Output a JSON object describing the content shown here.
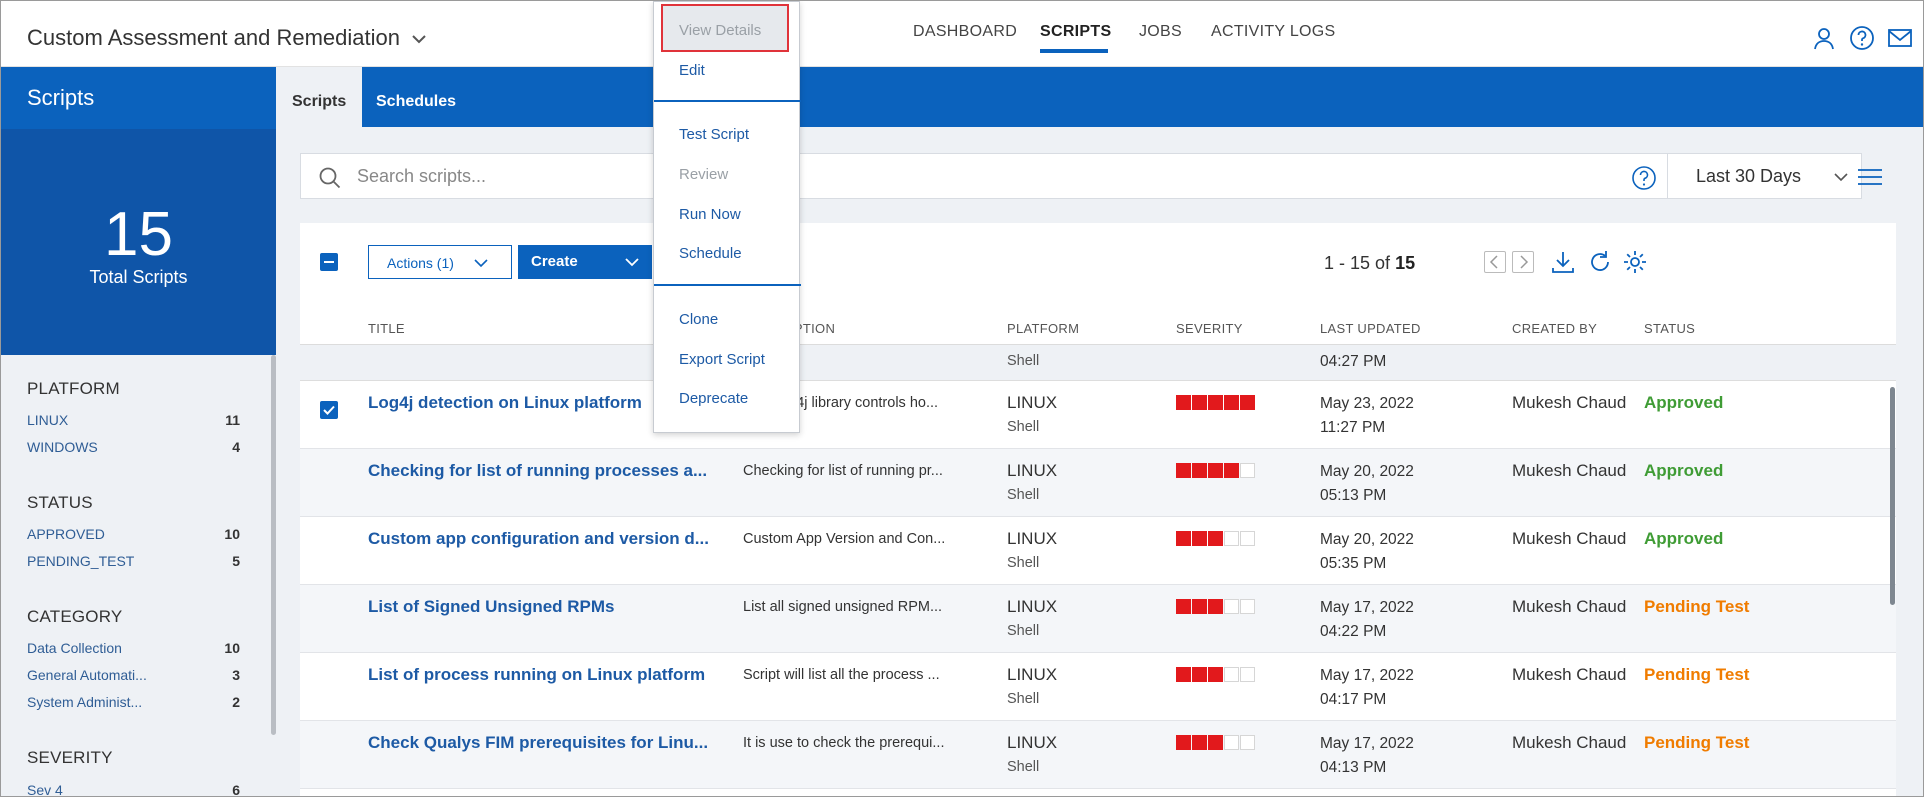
{
  "app": {
    "title": "Custom Assessment and Remediation"
  },
  "nav": [
    "DASHBOARD",
    "SCRIPTS",
    "JOBS",
    "ACTIVITY LOGS"
  ],
  "nav_active": "SCRIPTS",
  "header_icons": [
    "user-icon",
    "help-icon",
    "mail-icon"
  ],
  "left": {
    "title": "Scripts",
    "total_count": "15",
    "total_label": "Total Scripts",
    "filters": [
      {
        "heading": "PLATFORM",
        "items": [
          {
            "label": "LINUX",
            "count": "11"
          },
          {
            "label": "WINDOWS",
            "count": "4"
          }
        ]
      },
      {
        "heading": "STATUS",
        "items": [
          {
            "label": "APPROVED",
            "count": "10"
          },
          {
            "label": "PENDING_TEST",
            "count": "5"
          }
        ]
      },
      {
        "heading": "CATEGORY",
        "items": [
          {
            "label": "Data Collection",
            "count": "10"
          },
          {
            "label": "General Automati...",
            "count": "3"
          },
          {
            "label": "System Administ...",
            "count": "2"
          }
        ]
      },
      {
        "heading": "SEVERITY",
        "items": [
          {
            "label": "Sev 4",
            "count": "6"
          }
        ]
      }
    ]
  },
  "tabs": [
    {
      "label": "Scripts",
      "active": true
    },
    {
      "label": "Schedules",
      "active": false
    }
  ],
  "search": {
    "placeholder": "Search scripts...",
    "date_range": "Last 30 Days"
  },
  "toolbar": {
    "actions_label": "Actions (1)",
    "create_label": "Create",
    "pagination_range": "1 - 15 of",
    "pagination_total": "15"
  },
  "columns": [
    "TITLE",
    "DESCRIPTION",
    "PLATFORM",
    "SEVERITY",
    "LAST UPDATED",
    "CREATED BY",
    "STATUS"
  ],
  "partial_row": {
    "sub": "Shell",
    "time": "04:27 PM"
  },
  "rows": [
    {
      "checked": true,
      "title": "Log4j detection on Linux platform",
      "description": "The Log4j library controls ho...",
      "platform": "LINUX",
      "type": "Shell",
      "severity": 5,
      "date": "May 23, 2022",
      "time": "11:27 PM",
      "created_by": "Mukesh Chaud",
      "status": "Approved"
    },
    {
      "checked": false,
      "title": "Checking for list of running processes a...",
      "description": "Checking for list of running pr...",
      "platform": "LINUX",
      "type": "Shell",
      "severity": 4,
      "date": "May 20, 2022",
      "time": "05:13 PM",
      "created_by": "Mukesh Chaud",
      "status": "Approved"
    },
    {
      "checked": false,
      "title": "Custom app configuration and version d...",
      "description": "Custom App Version and Con...",
      "platform": "LINUX",
      "type": "Shell",
      "severity": 3,
      "date": "May 20, 2022",
      "time": "05:35 PM",
      "created_by": "Mukesh Chaud",
      "status": "Approved"
    },
    {
      "checked": false,
      "title": "List of Signed Unsigned RPMs",
      "description": "List all signed unsigned RPM...",
      "platform": "LINUX",
      "type": "Shell",
      "severity": 3,
      "date": "May 17, 2022",
      "time": "04:22 PM",
      "created_by": "Mukesh Chaud",
      "status": "Pending Test"
    },
    {
      "checked": false,
      "title": "List of process running on Linux platform",
      "description": "Script will list all the process ...",
      "platform": "LINUX",
      "type": "Shell",
      "severity": 3,
      "date": "May 17, 2022",
      "time": "04:17 PM",
      "created_by": "Mukesh Chaud",
      "status": "Pending Test"
    },
    {
      "checked": false,
      "title": "Check Qualys FIM prerequisites for Linu...",
      "description": "It is use to check the prerequi...",
      "platform": "LINUX",
      "type": "Shell",
      "severity": 3,
      "date": "May 17, 2022",
      "time": "04:13 PM",
      "created_by": "Mukesh Chaud",
      "status": "Pending Test"
    }
  ],
  "status_colors": {
    "Approved": "#3f9c35",
    "Pending Test": "#f07c00"
  },
  "context_menu": {
    "highlighted": "View Details",
    "groups": [
      [
        {
          "label": "View Details",
          "disabled": true
        },
        {
          "label": "Edit",
          "disabled": false
        }
      ],
      [
        {
          "label": "Test Script",
          "disabled": false
        },
        {
          "label": "Review",
          "disabled": true
        },
        {
          "label": "Run Now",
          "disabled": false
        },
        {
          "label": "Schedule",
          "disabled": false
        }
      ],
      [
        {
          "label": "Clone",
          "disabled": false
        },
        {
          "label": "Export Script",
          "disabled": false
        },
        {
          "label": "Deprecate",
          "disabled": false
        }
      ]
    ]
  },
  "colors": {
    "primary": "#0b62bd",
    "dark_primary": "#0f55a8",
    "severity": "#e2191c"
  }
}
